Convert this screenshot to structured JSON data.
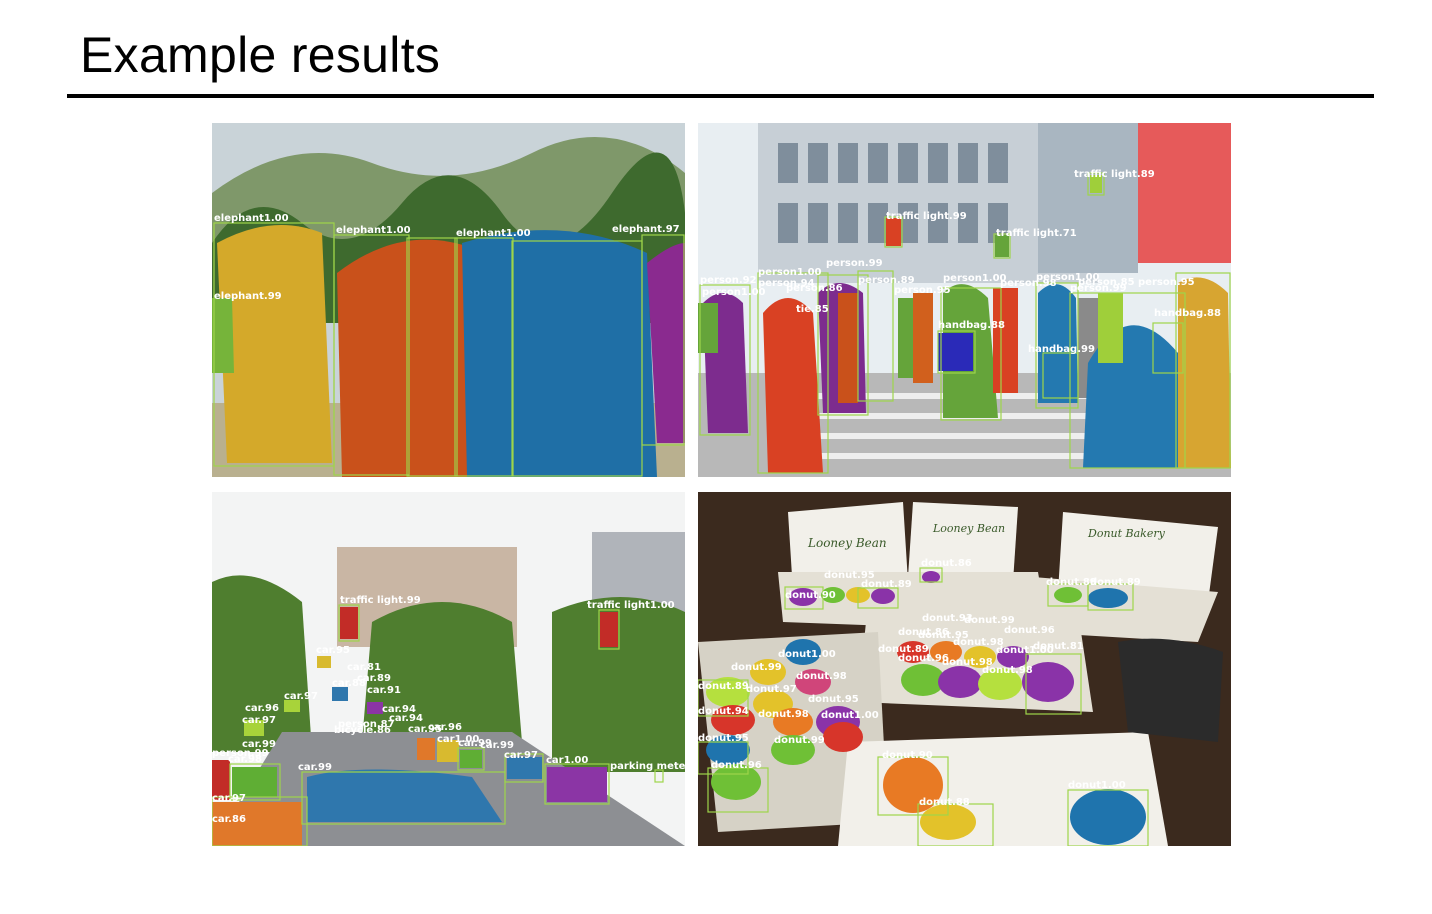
{
  "slide": {
    "title": "Example results"
  },
  "panels": {
    "elephants": {
      "labels": [
        "elephant1.00",
        "elephant1.00",
        "elephant1.00",
        "elephant.97",
        "elephant.99"
      ],
      "colors": {
        "sky": "#c9d3d8",
        "hill": "#6f8a56",
        "trees": "#3e6a2e",
        "ground": "#b9b08f",
        "yellow": "#d4a92a",
        "orange": "#c9511b",
        "blue": "#1f6fa6",
        "purple": "#8a2a8f",
        "green": "#76b43a"
      }
    },
    "crowd": {
      "labels": [
        "traffic light.89",
        "traffic light.99",
        "traffic light.71",
        "person.92",
        "person1.00",
        "person1.00",
        "person.94",
        "person.86",
        "person.99",
        "person.89",
        "person.95",
        "person1.00",
        "person1.00",
        "person.98",
        "person.85",
        "person.95",
        "person.99",
        "tie.85",
        "handbag.88",
        "handbag.99",
        "handbag.88"
      ],
      "colors": {
        "sky": "#e8eef2",
        "building": "#c7cfd6",
        "window": "#7f8e9c",
        "street": "#b8b8b8",
        "red": "#d94123",
        "orange": "#d1601d",
        "purple": "#7d2c8e",
        "green": "#65a43a",
        "blue": "#2479b0",
        "yellow": "#d7a531",
        "lime": "#9fcf3a",
        "gray": "#8a8a8a"
      }
    },
    "street": {
      "labels": [
        "traffic light.99",
        "traffic light1.00",
        "car.95",
        "car.81",
        "car.89",
        "car.88",
        "car.91",
        "car.97",
        "car.96",
        "car.97",
        "car.94",
        "car.94",
        "person.87",
        "bicycle.86",
        "car.95",
        "car.96",
        "car1.00",
        "car.99",
        "car.97",
        "car.99",
        "car1.00",
        "person.99",
        "car.99",
        "car.98",
        "car.99",
        "car.97",
        "car.86",
        "parking meter"
      ],
      "colors": {
        "sky": "#f3f4f4",
        "tree": "#4f7e2f",
        "house": "#c9b6a4",
        "road": "#8d8f93",
        "blue": "#2f77ad",
        "purple": "#8b35a5",
        "orange": "#e0782a",
        "red": "#c22c27",
        "green": "#5fae34",
        "yellow": "#d8ba2f",
        "lime": "#a8d33a"
      }
    },
    "donuts": {
      "labels": [
        "donut.86",
        "donut.95",
        "donut.89",
        "donut.90",
        "donut.89",
        "donut.89",
        "donut.93",
        "donut.99",
        "donut.86",
        "donut.95",
        "donut.96",
        "donut.89",
        "donut.98",
        "donut1.00",
        "donut.81",
        "donut.96",
        "donut.98",
        "donut.98",
        "donut1.00",
        "donut.99",
        "donut.98",
        "donut.89",
        "donut.97",
        "donut.95",
        "donut.94",
        "donut.98",
        "donut1.00",
        "donut.95",
        "donut.99",
        "donut.96",
        "donut.90",
        "donut.88",
        "donut1.00"
      ],
      "box_text": [
        "Looney Bean",
        "Looney Bean",
        "Donut Bakery"
      ],
      "colors": {
        "table": "#3b2a1e",
        "box": "#f2f0ea",
        "boxshade": "#d6d2c6",
        "red": "#d7352a",
        "orange": "#e87a24",
        "yellow": "#e3c22a",
        "green": "#6fc036",
        "blue": "#1f74ad",
        "purple": "#8a33a8",
        "pink": "#d0457a",
        "lime": "#b5e03e",
        "teal": "#2a9a9a"
      }
    }
  }
}
